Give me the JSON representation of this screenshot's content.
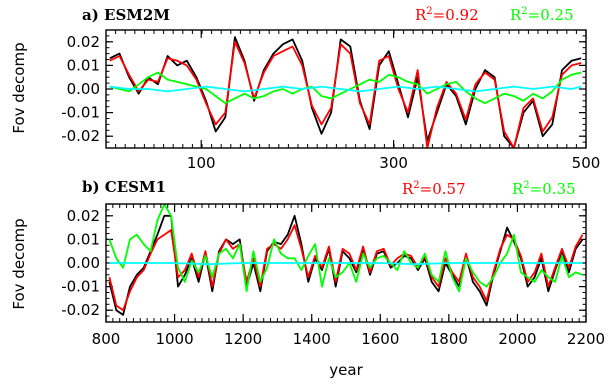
{
  "colors": {
    "black": "#000000",
    "red": "#ff0000",
    "green": "#00ff00",
    "cyan": "#00ffff"
  },
  "chart_data": [
    {
      "type": "line",
      "title": "a) ESM2M",
      "ylabel": "Fov decomp",
      "xlabel": "",
      "xlim": [
        1,
        500
      ],
      "ylim": [
        -0.025,
        0.025
      ],
      "xticks": [
        100,
        300,
        500
      ],
      "yticks": [
        0.02,
        0.01,
        0.0,
        -0.01,
        -0.02
      ],
      "ytick_labels": [
        "0.02",
        "0.01",
        "0.00",
        "-0.01",
        "-0.02"
      ],
      "annotations": [
        {
          "label": "R",
          "sup": "2",
          "value": "=0.92",
          "color": "#ff0000"
        },
        {
          "label": "R",
          "sup": "2",
          "value": "=0.25",
          "color": "#00ff00"
        }
      ],
      "series": [
        {
          "color": "#000000",
          "x": [
            5,
            15,
            25,
            35,
            45,
            55,
            65,
            75,
            85,
            95,
            105,
            115,
            125,
            135,
            145,
            155,
            165,
            175,
            185,
            195,
            205,
            215,
            225,
            235,
            245,
            255,
            265,
            275,
            285,
            295,
            305,
            315,
            325,
            335,
            345,
            355,
            365,
            375,
            385,
            395,
            405,
            415,
            425,
            435,
            445,
            455,
            465,
            475,
            485,
            495
          ],
          "values": [
            0.013,
            0.015,
            0.005,
            -0.002,
            0.005,
            0.002,
            0.014,
            0.01,
            0.012,
            0.005,
            -0.005,
            -0.018,
            -0.012,
            0.022,
            0.012,
            -0.005,
            0.008,
            0.015,
            0.019,
            0.021,
            0.012,
            -0.008,
            -0.019,
            -0.01,
            0.021,
            0.018,
            -0.005,
            -0.017,
            0.01,
            0.016,
            0.002,
            -0.012,
            0.005,
            -0.022,
            -0.01,
            0.002,
            -0.003,
            -0.015,
            0.0,
            0.008,
            0.005,
            -0.02,
            -0.025,
            -0.01,
            -0.005,
            -0.02,
            -0.015,
            0.008,
            0.012,
            0.013
          ]
        },
        {
          "color": "#ff0000",
          "x": [
            5,
            15,
            25,
            35,
            45,
            55,
            65,
            75,
            85,
            95,
            105,
            115,
            125,
            135,
            145,
            155,
            165,
            175,
            185,
            195,
            205,
            215,
            225,
            235,
            245,
            255,
            265,
            275,
            285,
            295,
            305,
            315,
            325,
            335,
            345,
            355,
            365,
            375,
            385,
            395,
            405,
            415,
            425,
            435,
            445,
            455,
            465,
            475,
            485,
            495
          ],
          "values": [
            0.012,
            0.014,
            0.006,
            -0.001,
            0.004,
            0.003,
            0.013,
            0.012,
            0.01,
            0.004,
            -0.006,
            -0.015,
            -0.01,
            0.02,
            0.011,
            -0.004,
            0.007,
            0.014,
            0.016,
            0.018,
            0.01,
            -0.007,
            -0.015,
            -0.008,
            0.019,
            0.015,
            -0.006,
            -0.015,
            0.012,
            0.014,
            0.0,
            -0.01,
            0.008,
            -0.025,
            -0.008,
            0.003,
            -0.002,
            -0.013,
            0.002,
            0.007,
            0.004,
            -0.018,
            -0.025,
            -0.008,
            -0.004,
            -0.018,
            -0.012,
            0.006,
            0.01,
            0.011
          ]
        },
        {
          "color": "#00ff00",
          "x": [
            5,
            15,
            25,
            35,
            45,
            55,
            65,
            75,
            85,
            95,
            105,
            115,
            125,
            135,
            145,
            155,
            165,
            175,
            185,
            195,
            205,
            215,
            225,
            235,
            245,
            255,
            265,
            275,
            285,
            295,
            305,
            315,
            325,
            335,
            345,
            355,
            365,
            375,
            385,
            395,
            405,
            415,
            425,
            435,
            445,
            455,
            465,
            475,
            485,
            495
          ],
          "values": [
            0.001,
            0.0,
            -0.001,
            0.002,
            0.005,
            0.007,
            0.004,
            0.003,
            0.002,
            0.001,
            0.0,
            -0.003,
            -0.006,
            -0.004,
            -0.002,
            -0.004,
            -0.003,
            -0.001,
            0.0,
            -0.002,
            0.0,
            0.001,
            -0.003,
            -0.004,
            -0.002,
            0.0,
            0.002,
            0.004,
            0.003,
            0.006,
            0.005,
            0.003,
            0.002,
            -0.002,
            0.0,
            0.002,
            0.003,
            -0.001,
            -0.004,
            -0.006,
            -0.004,
            -0.002,
            -0.003,
            -0.005,
            -0.002,
            -0.004,
            -0.001,
            0.004,
            0.006,
            0.007
          ]
        },
        {
          "color": "#00ffff",
          "x": [
            5,
            25,
            45,
            65,
            85,
            105,
            125,
            145,
            165,
            185,
            205,
            225,
            245,
            265,
            285,
            305,
            325,
            345,
            365,
            385,
            405,
            425,
            445,
            465,
            485,
            495
          ],
          "values": [
            0.001,
            0.0,
            0.0,
            -0.001,
            0.0,
            0.001,
            0.0,
            -0.001,
            0.0,
            0.001,
            0.0,
            0.001,
            0.0,
            -0.001,
            0.0,
            0.001,
            0.0,
            0.001,
            0.0,
            -0.001,
            0.0,
            0.001,
            0.0,
            0.001,
            0.0,
            0.001
          ]
        }
      ]
    },
    {
      "type": "line",
      "title": "b) CESM1",
      "ylabel": "Fov decomp",
      "xlabel": "year",
      "xlim": [
        800,
        2200
      ],
      "ylim": [
        -0.025,
        0.025
      ],
      "xticks": [
        800,
        1000,
        1200,
        1400,
        1600,
        1800,
        2000,
        2200
      ],
      "yticks": [
        0.02,
        0.01,
        0.0,
        -0.01,
        -0.02
      ],
      "ytick_labels": [
        "0.02",
        "0.01",
        "0.00",
        "-0.01",
        "-0.02"
      ],
      "annotations": [
        {
          "label": "R",
          "sup": "2",
          "value": "=0.57",
          "color": "#ff0000"
        },
        {
          "label": "R",
          "sup": "2",
          "value": "=0.35",
          "color": "#00ff00"
        }
      ],
      "series": [
        {
          "color": "#000000",
          "x": [
            810,
            830,
            850,
            870,
            890,
            910,
            930,
            950,
            970,
            990,
            1010,
            1030,
            1050,
            1070,
            1090,
            1110,
            1130,
            1150,
            1170,
            1190,
            1210,
            1230,
            1250,
            1270,
            1290,
            1310,
            1330,
            1350,
            1370,
            1390,
            1410,
            1430,
            1450,
            1470,
            1490,
            1510,
            1530,
            1550,
            1570,
            1590,
            1610,
            1630,
            1650,
            1670,
            1690,
            1710,
            1730,
            1750,
            1770,
            1790,
            1810,
            1830,
            1850,
            1870,
            1890,
            1910,
            1930,
            1950,
            1970,
            1990,
            2010,
            2030,
            2050,
            2070,
            2090,
            2110,
            2130,
            2150,
            2170,
            2190
          ],
          "values": [
            -0.008,
            -0.02,
            -0.022,
            -0.01,
            -0.005,
            -0.002,
            0.005,
            0.012,
            0.02,
            0.02,
            -0.01,
            -0.005,
            0.002,
            -0.008,
            0.004,
            -0.012,
            0.005,
            0.01,
            0.008,
            0.01,
            -0.01,
            0.0,
            -0.012,
            0.005,
            0.009,
            0.008,
            0.012,
            0.02,
            0.008,
            -0.008,
            0.002,
            -0.003,
            0.006,
            -0.01,
            0.005,
            0.002,
            -0.004,
            0.006,
            -0.005,
            0.004,
            0.005,
            -0.002,
            0.0,
            0.003,
            0.002,
            -0.003,
            0.002,
            -0.008,
            -0.012,
            0.0,
            -0.005,
            -0.01,
            0.003,
            -0.008,
            -0.012,
            -0.018,
            -0.005,
            0.005,
            0.015,
            0.009,
            0.002,
            -0.01,
            -0.006,
            0.002,
            -0.012,
            -0.003,
            0.005,
            -0.004,
            0.006,
            0.01
          ]
        },
        {
          "color": "#ff0000",
          "x": [
            810,
            830,
            850,
            870,
            890,
            910,
            930,
            950,
            970,
            990,
            1010,
            1030,
            1050,
            1070,
            1090,
            1110,
            1130,
            1150,
            1170,
            1190,
            1210,
            1230,
            1250,
            1270,
            1290,
            1310,
            1330,
            1350,
            1370,
            1390,
            1410,
            1430,
            1450,
            1470,
            1490,
            1510,
            1530,
            1550,
            1570,
            1590,
            1610,
            1630,
            1650,
            1670,
            1690,
            1710,
            1730,
            1750,
            1770,
            1790,
            1810,
            1830,
            1850,
            1870,
            1890,
            1910,
            1930,
            1950,
            1970,
            1990,
            2010,
            2030,
            2050,
            2070,
            2090,
            2110,
            2130,
            2150,
            2170,
            2190
          ],
          "values": [
            -0.006,
            -0.018,
            -0.02,
            -0.012,
            -0.006,
            -0.003,
            0.004,
            0.01,
            0.012,
            0.014,
            -0.006,
            -0.003,
            0.004,
            -0.006,
            0.005,
            -0.01,
            0.004,
            0.01,
            0.006,
            0.008,
            -0.008,
            0.002,
            -0.01,
            0.006,
            0.008,
            0.006,
            0.01,
            0.016,
            0.006,
            -0.006,
            0.003,
            -0.002,
            0.007,
            -0.008,
            0.006,
            0.004,
            -0.003,
            0.007,
            -0.004,
            0.005,
            0.006,
            -0.001,
            0.002,
            0.004,
            0.003,
            -0.002,
            0.003,
            -0.006,
            -0.01,
            0.002,
            -0.004,
            -0.008,
            0.004,
            -0.006,
            -0.01,
            -0.016,
            -0.004,
            0.006,
            0.012,
            0.01,
            0.003,
            -0.008,
            -0.004,
            0.004,
            -0.01,
            -0.002,
            0.006,
            -0.002,
            0.007,
            0.012
          ]
        },
        {
          "color": "#00ff00",
          "x": [
            810,
            830,
            850,
            870,
            890,
            910,
            930,
            950,
            970,
            990,
            1010,
            1030,
            1050,
            1070,
            1090,
            1110,
            1130,
            1150,
            1170,
            1190,
            1210,
            1230,
            1250,
            1270,
            1290,
            1310,
            1330,
            1350,
            1370,
            1390,
            1410,
            1430,
            1450,
            1470,
            1490,
            1510,
            1530,
            1550,
            1570,
            1590,
            1610,
            1630,
            1650,
            1670,
            1690,
            1710,
            1730,
            1750,
            1770,
            1790,
            1810,
            1830,
            1850,
            1870,
            1890,
            1910,
            1930,
            1950,
            1970,
            1990,
            2010,
            2030,
            2050,
            2070,
            2090,
            2110,
            2130,
            2150,
            2170,
            2190
          ],
          "values": [
            0.01,
            0.002,
            -0.002,
            0.01,
            0.012,
            0.008,
            0.005,
            0.018,
            0.025,
            0.02,
            -0.002,
            -0.008,
            0.001,
            -0.004,
            0.003,
            -0.006,
            0.004,
            0.006,
            0.002,
            0.008,
            -0.012,
            0.005,
            -0.008,
            -0.002,
            0.01,
            0.004,
            0.002,
            0.002,
            -0.003,
            0.003,
            0.008,
            -0.01,
            0.002,
            -0.006,
            -0.004,
            0.0,
            -0.008,
            0.004,
            -0.002,
            0.002,
            0.003,
            0.0,
            -0.003,
            0.005,
            0.0,
            -0.002,
            0.004,
            -0.005,
            -0.008,
            0.005,
            -0.006,
            -0.012,
            0.002,
            -0.004,
            -0.008,
            -0.01,
            -0.006,
            0.0,
            0.004,
            0.012,
            -0.004,
            -0.006,
            -0.008,
            -0.003,
            -0.006,
            -0.008,
            0.003,
            -0.006,
            -0.004,
            -0.005
          ]
        },
        {
          "color": "#00ffff",
          "x": [
            810,
            900,
            1000,
            1100,
            1200,
            1300,
            1400,
            1500,
            1600,
            1700,
            1800,
            1900,
            2000,
            2100,
            2190
          ],
          "values": [
            0.0,
            0.0,
            0.0,
            -0.0005,
            0.0,
            0.0,
            0.0,
            0.0,
            0.0,
            -0.0005,
            0.0,
            0.0,
            0.0,
            0.0,
            0.0
          ]
        }
      ]
    }
  ]
}
